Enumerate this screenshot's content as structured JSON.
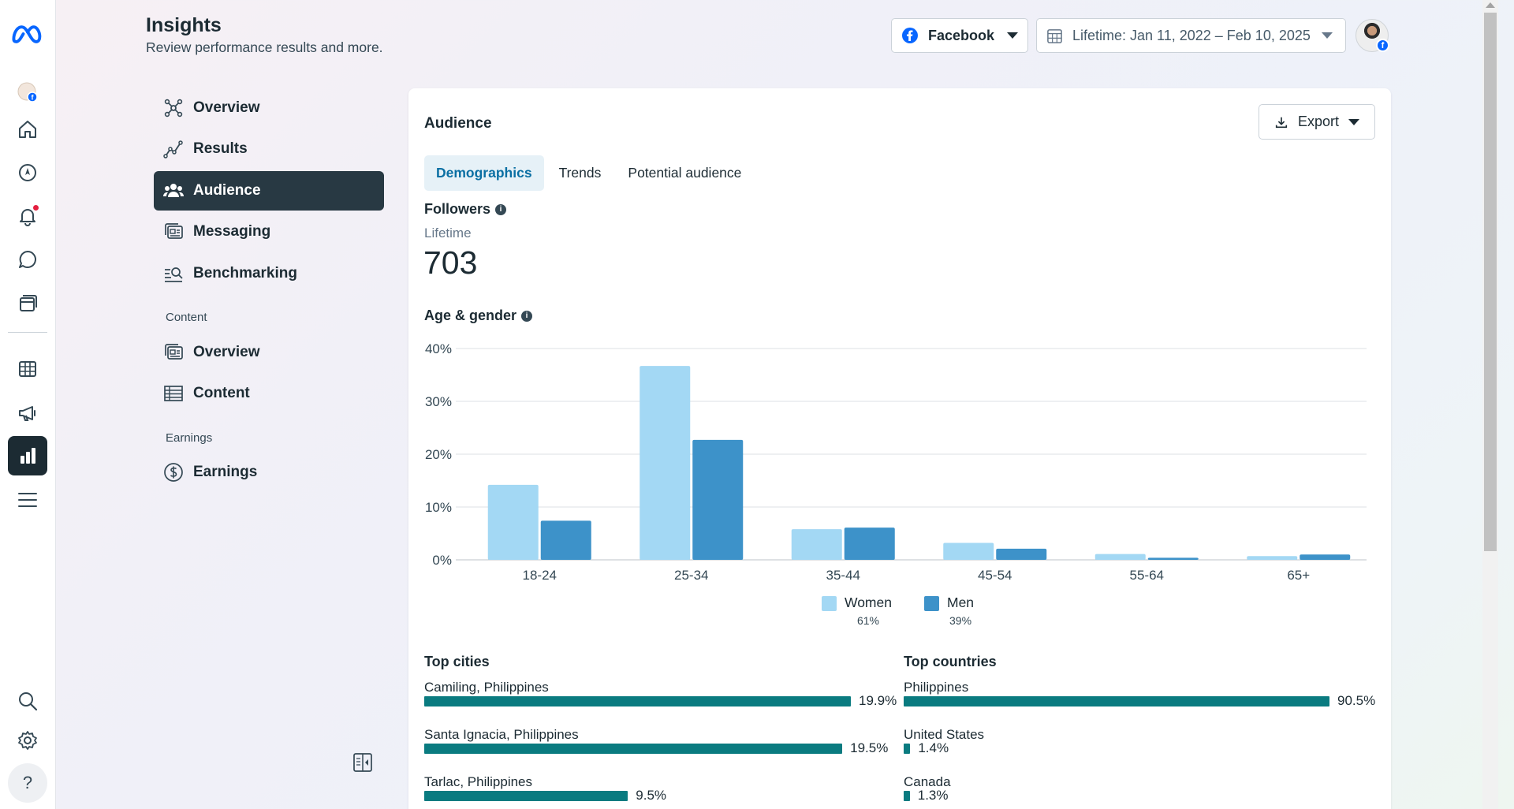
{
  "header": {
    "title": "Insights",
    "subtitle": "Review performance results and more.",
    "platform": "Facebook",
    "date_range": "Lifetime: Jan 11, 2022 – Feb 10, 2025"
  },
  "rail": {
    "icons": [
      "meta-logo-icon",
      "page-avatar-icon",
      "home-icon",
      "compass-icon",
      "bell-icon",
      "chat-icon",
      "pages-icon",
      "table-icon",
      "megaphone-icon",
      "insights-icon",
      "menu-icon",
      "search-icon",
      "gear-icon",
      "help-icon"
    ],
    "help_label": "?"
  },
  "nav": {
    "items": [
      {
        "label": "Overview",
        "icon": "network-icon"
      },
      {
        "label": "Results",
        "icon": "trend-icon"
      },
      {
        "label": "Audience",
        "icon": "people-icon"
      },
      {
        "label": "Messaging",
        "icon": "messaging-icon"
      },
      {
        "label": "Benchmarking",
        "icon": "benchmark-icon"
      }
    ],
    "content_section": "Content",
    "content_items": [
      {
        "label": "Overview",
        "icon": "content-overview-icon"
      },
      {
        "label": "Content",
        "icon": "grid-table-icon"
      }
    ],
    "earnings_section": "Earnings",
    "earnings_items": [
      {
        "label": "Earnings",
        "icon": "dollar-icon"
      }
    ]
  },
  "card": {
    "title": "Audience",
    "export_label": "Export",
    "tabs": [
      "Demographics",
      "Trends",
      "Potential audience"
    ],
    "followers_label": "Followers",
    "lifetime_label": "Lifetime",
    "followers_count": "703",
    "age_gender_label": "Age & gender"
  },
  "colors": {
    "women": "#a3d8f4",
    "men": "#3d92c9",
    "bar": "#0a7b80",
    "active_nav": "#283943"
  },
  "chart_data": {
    "type": "bar",
    "title": "Age & gender",
    "categories": [
      "18-24",
      "25-34",
      "35-44",
      "45-54",
      "55-64",
      "65+"
    ],
    "series": [
      {
        "name": "Women",
        "share": "61%",
        "values": [
          14.2,
          36.7,
          5.8,
          3.2,
          1.1,
          0.7
        ]
      },
      {
        "name": "Men",
        "share": "39%",
        "values": [
          7.4,
          22.7,
          6.1,
          2.1,
          0.4,
          1.0
        ]
      }
    ],
    "yticks": [
      "0%",
      "10%",
      "20%",
      "30%",
      "40%"
    ],
    "ylim": [
      0,
      40
    ],
    "grid": true,
    "legend": "bottom-center"
  },
  "top_cities": {
    "title": "Top cities",
    "rows": [
      {
        "label": "Camiling, Philippines",
        "value": 19.9,
        "pct": "19.9%"
      },
      {
        "label": "Santa Ignacia, Philippines",
        "value": 19.5,
        "pct": "19.5%"
      },
      {
        "label": "Tarlac, Philippines",
        "value": 9.5,
        "pct": "9.5%"
      }
    ]
  },
  "top_countries": {
    "title": "Top countries",
    "rows": [
      {
        "label": "Philippines",
        "value": 90.5,
        "pct": "90.5%"
      },
      {
        "label": "United States",
        "value": 1.4,
        "pct": "1.4%"
      },
      {
        "label": "Canada",
        "value": 1.3,
        "pct": "1.3%"
      }
    ]
  }
}
